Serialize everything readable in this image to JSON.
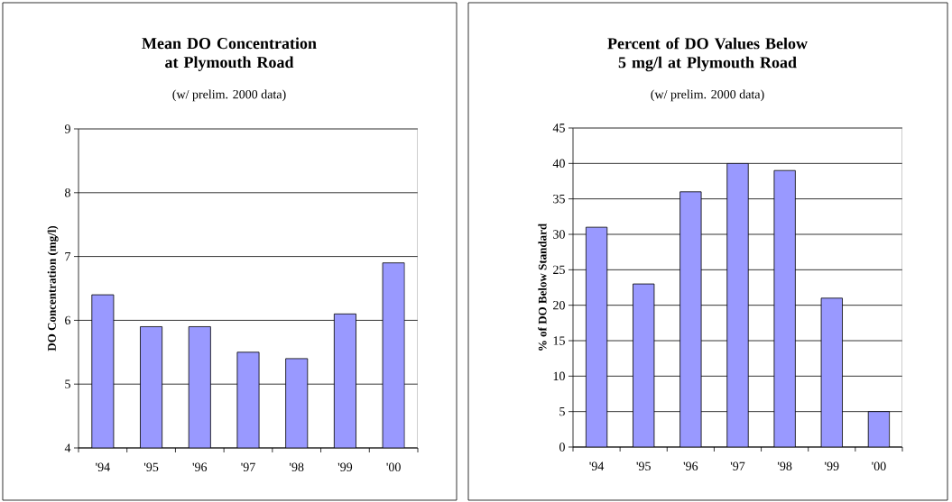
{
  "chart_data": [
    {
      "type": "bar",
      "title": "Mean DO Concentration at Plymouth Road",
      "subtitle": "(w/ prelim. 2000 data)",
      "ylabel": "DO Concentration (mg/l)",
      "categories": [
        "'94",
        "'95",
        "'96",
        "'97",
        "'98",
        "'99",
        "'00"
      ],
      "values": [
        6.4,
        5.9,
        5.9,
        5.5,
        5.4,
        6.1,
        6.9
      ],
      "color": "#9999ff",
      "ylim": [
        4,
        9
      ],
      "yticks": [
        4,
        5,
        6,
        7,
        8,
        9
      ],
      "grid": "y"
    },
    {
      "type": "bar",
      "title": "Percent of DO Values Below 5 mg/l at Plymouth Road",
      "subtitle": "(w/ prelim. 2000 data)",
      "ylabel": "% of DO Below Standard",
      "categories": [
        "'94",
        "'95",
        "'96",
        "'97",
        "'98",
        "'99",
        "'00"
      ],
      "values": [
        31,
        23,
        36,
        40,
        39,
        21,
        5
      ],
      "color": "#9999ff",
      "ylim": [
        0,
        45
      ],
      "yticks": [
        0,
        5,
        10,
        15,
        20,
        25,
        30,
        35,
        40,
        45
      ],
      "grid": "y"
    }
  ]
}
